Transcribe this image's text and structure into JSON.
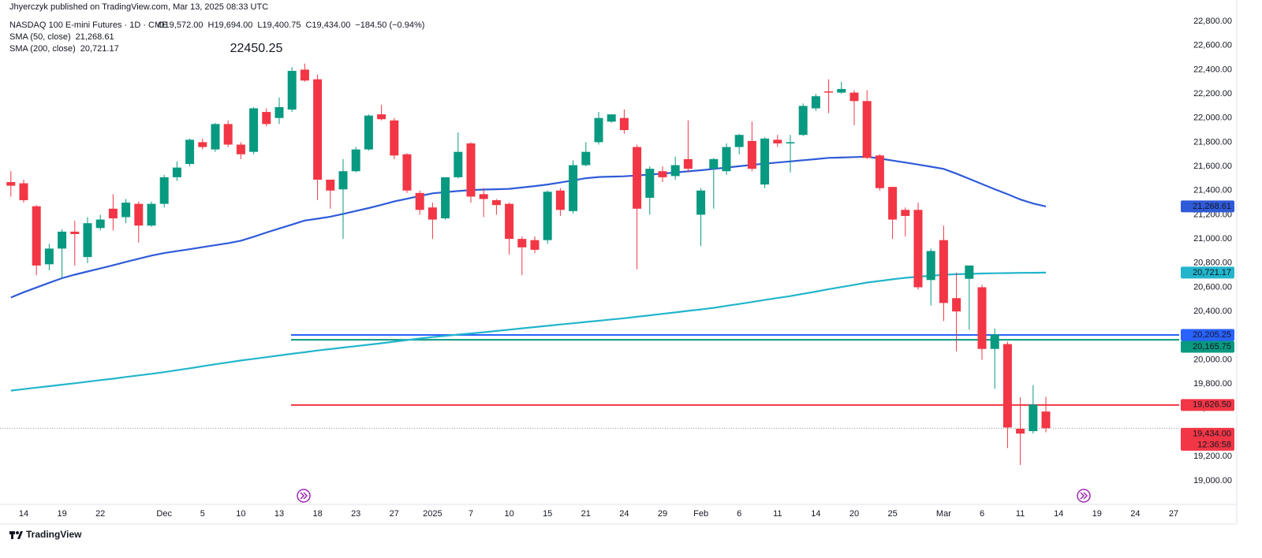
{
  "header": {
    "publisher": "Jhyerczyk published on TradingView.com, Mar 13, 2025 08:33 UTC",
    "brand": "TradingView"
  },
  "chart_data": {
    "type": "candlestick",
    "legend": {
      "symbol": "NASDAQ 100 E-mini Futures · 1D · CME",
      "ohlc": [
        "O19,572.00",
        "H19,694.00",
        "L19,400.75",
        "C19,434.00",
        "−184.50 (−0.94%)"
      ]
    },
    "annotation": "22450.25",
    "up_color": "#089981",
    "down_color": "#f23645",
    "ylim": [
      18804,
      22976
    ],
    "yticks": [
      {
        "value": 19000,
        "label": "19,000.00"
      },
      {
        "value": 19200,
        "label": "19,200.00"
      },
      {
        "value": 19400,
        "label": "19,400.00"
      },
      {
        "value": 19600,
        "label": "19,600.00"
      },
      {
        "value": 19800,
        "label": "19,800.00"
      },
      {
        "value": 20000,
        "label": "20,000.00"
      },
      {
        "value": 20200,
        "label": "20,200.00"
      },
      {
        "value": 20400,
        "label": "20,400.00"
      },
      {
        "value": 20600,
        "label": "20,600.00"
      },
      {
        "value": 20800,
        "label": "20,800.00"
      },
      {
        "value": 21000,
        "label": "21,000.00"
      },
      {
        "value": 21200,
        "label": "21,200.00"
      },
      {
        "value": 21400,
        "label": "21,400.00"
      },
      {
        "value": 21600,
        "label": "21,600.00"
      },
      {
        "value": 21800,
        "label": "21,800.00"
      },
      {
        "value": 22000,
        "label": "22,000.00"
      },
      {
        "value": 22200,
        "label": "22,200.00"
      },
      {
        "value": 22400,
        "label": "22,400.00"
      },
      {
        "value": 22600,
        "label": "22,600.00"
      },
      {
        "value": 22800,
        "label": "22,800.00"
      }
    ],
    "grid": false,
    "categories": [
      null,
      "14",
      null,
      null,
      "19",
      null,
      null,
      "22",
      null,
      null,
      null,
      null,
      "Dec",
      null,
      null,
      "5",
      null,
      null,
      "10",
      null,
      null,
      "13",
      null,
      null,
      "18",
      null,
      null,
      "23",
      null,
      null,
      "27",
      null,
      null,
      "2025",
      null,
      null,
      "7",
      null,
      null,
      "10",
      null,
      null,
      "15",
      null,
      null,
      "21",
      null,
      null,
      "24",
      null,
      null,
      "29",
      null,
      null,
      "Feb",
      null,
      null,
      "6",
      null,
      null,
      "11",
      null,
      null,
      "14",
      null,
      null,
      "20",
      null,
      null,
      "25",
      null,
      null,
      null,
      "Mar",
      null,
      null,
      "6",
      null,
      null,
      "11",
      null,
      null,
      "14",
      null,
      null,
      "19",
      null,
      null,
      "24",
      null,
      null,
      "27"
    ],
    "open": [
      21470,
      21460,
      21270,
      20790,
      20920,
      21060,
      20850,
      21090,
      21250,
      21180,
      21290,
      21110,
      21290,
      21510,
      21620,
      21800,
      21740,
      21950,
      21780,
      21720,
      22050,
      22000,
      22070,
      22400,
      22320,
      21490,
      21410,
      21560,
      21740,
      22030,
      21980,
      21700,
      21380,
      21260,
      21170,
      21510,
      21790,
      21370,
      21320,
      21290,
      21000,
      20990,
      20990,
      21400,
      21230,
      21610,
      21800,
      21970,
      22000,
      21760,
      21340,
      21560,
      21520,
      21660,
      21200,
      21580,
      21560,
      21760,
      21810,
      21450,
      21820,
      21790,
      21860,
      22080,
      22220,
      22210,
      22210,
      22140,
      21690,
      21430,
      21240,
      21240,
      20660,
      20990,
      20510,
      20670,
      20600,
      20090,
      20130,
      19430,
      19410,
      19572,
      null,
      null,
      null,
      null,
      null,
      null,
      null,
      null,
      null,
      null
    ],
    "high": [
      21560,
      21490,
      21280,
      20960,
      21080,
      21150,
      21180,
      21200,
      21370,
      21330,
      21310,
      21310,
      21530,
      21640,
      21830,
      21830,
      21960,
      21980,
      21800,
      22090,
      22080,
      22170,
      22420,
      22450.25,
      22360,
      21490,
      21660,
      21760,
      22030,
      22110,
      22000,
      21710,
      21400,
      21300,
      21510,
      21880,
      21800,
      21420,
      21330,
      21300,
      21020,
      21020,
      21400,
      21420,
      21650,
      21800,
      22050,
      22030,
      22070,
      21780,
      21600,
      21600,
      21680,
      21980,
      21420,
      21670,
      21790,
      21870,
      21970,
      21840,
      21860,
      21860,
      22120,
      22200,
      22320,
      22300,
      22230,
      22230,
      21700,
      21430,
      21260,
      21300,
      20920,
      21110,
      20720,
      20780,
      20620,
      20260,
      20150,
      19690,
      19790,
      19694,
      null,
      null,
      null,
      null,
      null,
      null,
      null,
      null,
      null,
      null
    ],
    "low": [
      21350,
      21300,
      20700,
      20740,
      20680,
      20780,
      20800,
      21070,
      21070,
      21130,
      20970,
      21100,
      21260,
      21480,
      21600,
      21740,
      21720,
      21760,
      21660,
      21700,
      21930,
      21950,
      22050,
      22300,
      21320,
      21250,
      21000,
      21550,
      21730,
      21980,
      21660,
      21380,
      21200,
      21000,
      21160,
      21500,
      21300,
      21180,
      21200,
      20870,
      20700,
      20880,
      20960,
      21190,
      21210,
      21600,
      21780,
      21960,
      21870,
      20750,
      21200,
      21470,
      21490,
      21550,
      20940,
      21250,
      21530,
      21700,
      21560,
      21420,
      21760,
      21550,
      21850,
      22060,
      22040,
      22200,
      21940,
      21660,
      21400,
      21000,
      21020,
      20580,
      20450,
      20320,
      20070,
      20250,
      20000,
      19760,
      19270,
      19130,
      19390,
      19400.75,
      null,
      null,
      null,
      null,
      null,
      null,
      null,
      null,
      null,
      null
    ],
    "close": [
      21440,
      21320,
      20780,
      20920,
      21060,
      21040,
      21130,
      21160,
      21170,
      21300,
      21110,
      21290,
      21510,
      21590,
      21820,
      21760,
      21950,
      21780,
      21700,
      22080,
      21950,
      22090,
      22390,
      22310,
      21490,
      21400,
      21560,
      21740,
      22020,
      21990,
      21690,
      21400,
      21240,
      21160,
      21510,
      21720,
      21350,
      21330,
      21280,
      21000,
      20930,
      20910,
      21390,
      21240,
      21610,
      21720,
      22000,
      22030,
      21900,
      21250,
      21580,
      21510,
      21610,
      21580,
      21400,
      21660,
      21760,
      21860,
      21580,
      21830,
      21790,
      21800,
      22100,
      22180,
      22210,
      22240,
      22140,
      21670,
      21420,
      21160,
      21190,
      20600,
      20900,
      20470,
      20400,
      20780,
      20090,
      20210,
      19440,
      19390,
      19630,
      19434,
      null,
      null,
      null,
      null,
      null,
      null,
      null,
      null,
      null,
      null
    ],
    "series": [
      {
        "name": "SMA (50, close)",
        "color": "#2f5bd8",
        "last_label": "21,268.61",
        "values": [
          20515,
          20559,
          20598,
          20637,
          20675,
          20704,
          20730,
          20756,
          20782,
          20810,
          20836,
          20862,
          20883,
          20899,
          20915,
          20932,
          20948,
          20964,
          20985,
          21018,
          21053,
          21086,
          21119,
          21152,
          21167,
          21184,
          21207,
          21231,
          21255,
          21282,
          21310,
          21332,
          21355,
          21377,
          21387,
          21396,
          21404,
          21408,
          21411,
          21414,
          21425,
          21437,
          21450,
          21466,
          21484,
          21502,
          21512,
          21515,
          21518,
          21524,
          21532,
          21540,
          21549,
          21559,
          21568,
          21579,
          21590,
          21601,
          21612,
          21622,
          21632,
          21641,
          21651,
          21660,
          21670,
          21673,
          21677,
          21680,
          21665,
          21648,
          21632,
          21615,
          21597,
          21579,
          21540,
          21497,
          21454,
          21411,
          21370,
          21326,
          21293,
          21268.61,
          null,
          null,
          null,
          null,
          null,
          null,
          null,
          null,
          null,
          null
        ]
      },
      {
        "name": "SMA (200, close)",
        "color": "#22b5cc",
        "last_label": "20,721.17",
        "values": [
          19745,
          19758,
          19770,
          19782,
          19794,
          19806,
          19819,
          19832,
          19844,
          19858,
          19871,
          19884,
          19898,
          19914,
          19930,
          19947,
          19963,
          19979,
          19994,
          20008,
          20022,
          20036,
          20050,
          20063,
          20077,
          20089,
          20101,
          20113,
          20125,
          20137,
          20150,
          20163,
          20176,
          20188,
          20198,
          20209,
          20218,
          20228,
          20239,
          20249,
          20260,
          20271,
          20281,
          20292,
          20302,
          20313,
          20323,
          20334,
          20344,
          20356,
          20368,
          20380,
          20392,
          20405,
          20417,
          20430,
          20446,
          20462,
          20478,
          20495,
          20511,
          20527,
          20546,
          20564,
          20584,
          20602,
          20620,
          20639,
          20652,
          20666,
          20678,
          20687,
          20695,
          20703,
          20708,
          20711,
          20714,
          20716,
          20717,
          20719,
          20720,
          20721.17,
          null,
          null,
          null,
          null,
          null,
          null,
          null,
          null,
          null,
          null
        ]
      }
    ],
    "hlines": [
      {
        "value": 20205.25,
        "label": "20,205.25",
        "color": "#2962ff"
      },
      {
        "value": 20165.75,
        "label": "20,165.75",
        "color": "#089981"
      },
      {
        "value": 19626.5,
        "label": "19,626.50",
        "color": "#f23645"
      }
    ],
    "last_price": {
      "value": 19434,
      "label": "19,434.00",
      "countdown": "12:36:58",
      "color": "#f23645"
    }
  }
}
